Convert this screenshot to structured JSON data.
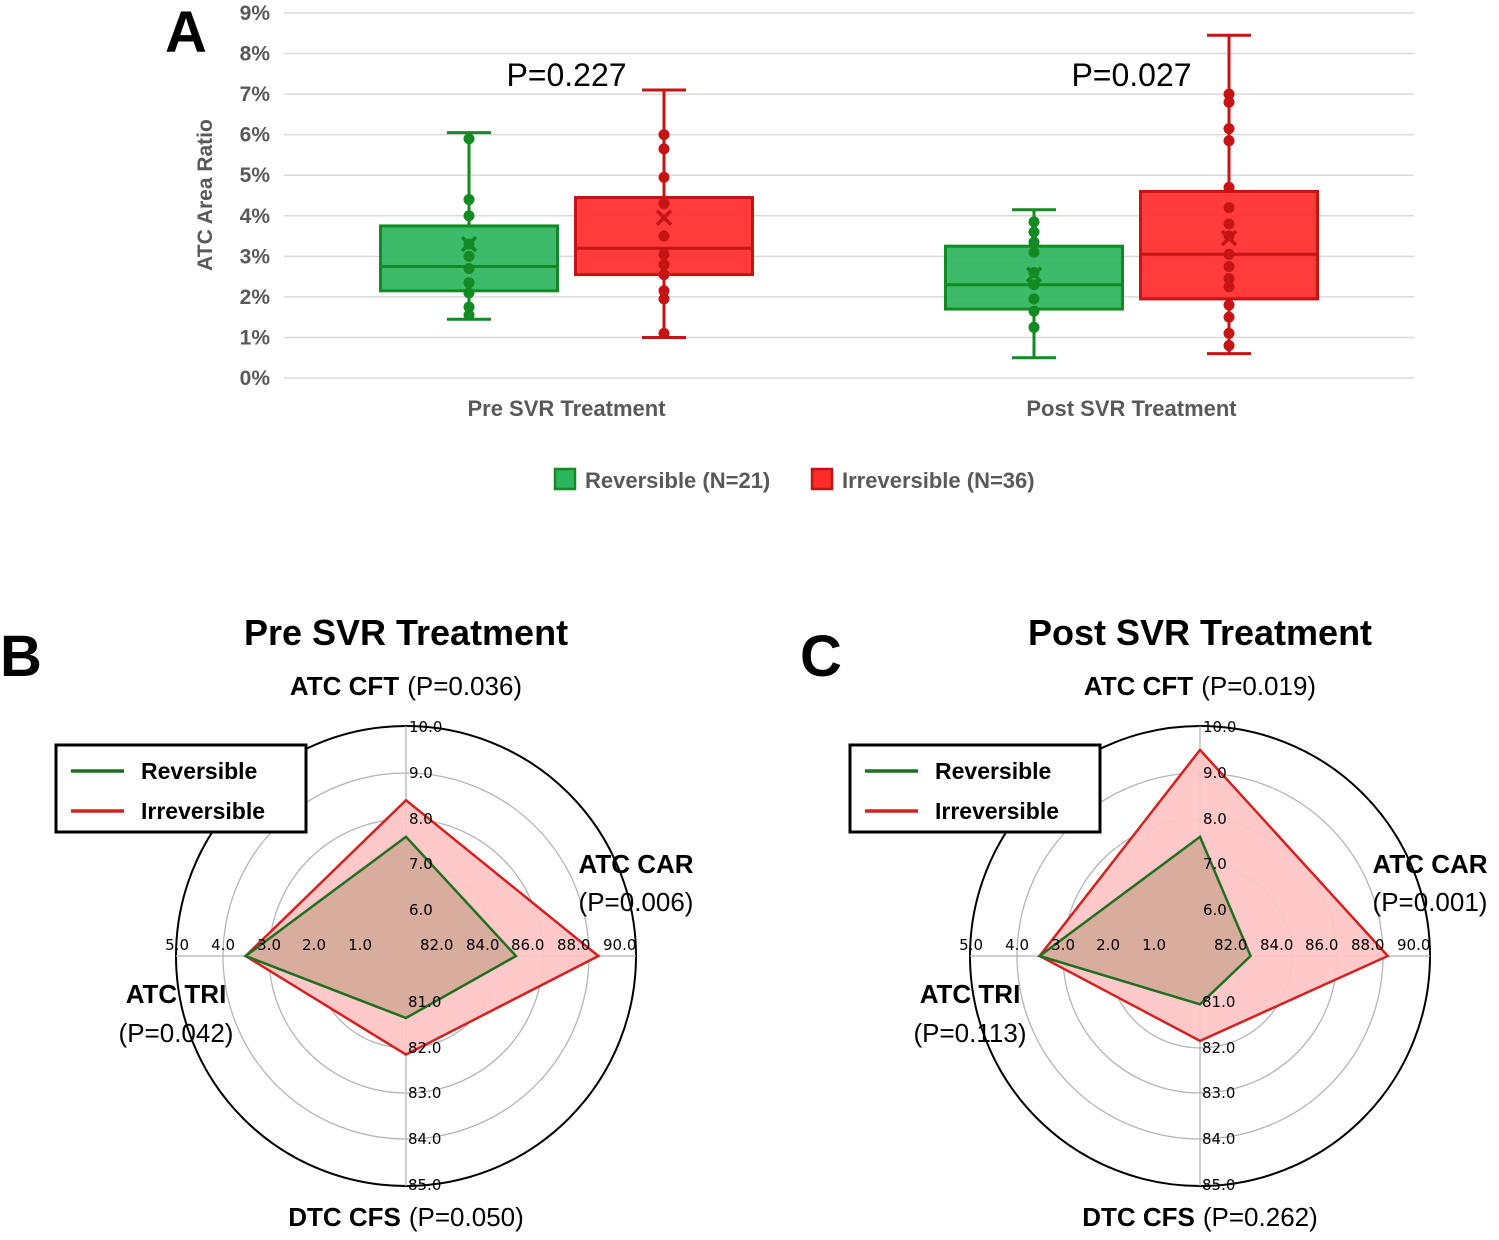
{
  "panel_a": {
    "letter": "A",
    "chart_data": {
      "type": "box",
      "title": "",
      "ylabel": "ATC Area Ratio",
      "xlabel": "",
      "ylim": [
        0,
        9
      ],
      "y_ticks": [
        "0%",
        "1%",
        "2%",
        "3%",
        "4%",
        "5%",
        "6%",
        "7%",
        "8%",
        "9%"
      ],
      "categories": [
        "Pre SVR Treatment",
        "Post SVR Treatment"
      ],
      "p_values": [
        "P=0.227",
        "P=0.027"
      ],
      "series": [
        {
          "name": "Reversible (N=21)",
          "fill": "#2db55d",
          "stroke": "#138a22",
          "boxes": [
            {
              "min": 1.45,
              "q1": 2.15,
              "median": 2.75,
              "q3": 3.75,
              "max": 6.05,
              "mean": 3.3,
              "points": [
                1.55,
                1.75,
                2.1,
                2.35,
                2.7,
                3.0,
                3.3,
                4.0,
                4.4,
                5.9
              ]
            },
            {
              "min": 0.5,
              "q1": 1.7,
              "median": 2.3,
              "q3": 3.25,
              "max": 4.15,
              "mean": 2.55,
              "points": [
                1.25,
                1.65,
                1.95,
                2.3,
                2.6,
                3.1,
                3.35,
                3.6,
                3.85
              ]
            }
          ]
        },
        {
          "name": "Irreversible (N=36)",
          "fill": "#ff2a2a",
          "stroke": "#c41414",
          "boxes": [
            {
              "min": 1.0,
              "q1": 2.55,
              "median": 3.2,
              "q3": 4.45,
              "max": 7.1,
              "mean": 3.95,
              "points": [
                1.1,
                1.95,
                2.15,
                2.55,
                2.8,
                3.05,
                3.5,
                4.3,
                4.95,
                5.65,
                6.0
              ]
            },
            {
              "min": 0.6,
              "q1": 1.95,
              "median": 3.05,
              "q3": 4.6,
              "max": 8.45,
              "mean": 3.45,
              "points": [
                0.8,
                1.1,
                1.5,
                1.8,
                2.25,
                2.45,
                2.75,
                3.05,
                3.5,
                3.8,
                4.2,
                4.7,
                5.85,
                6.15,
                6.8,
                7.0
              ]
            }
          ]
        }
      ]
    }
  },
  "panel_b": {
    "letter": "B",
    "chart_data": {
      "type": "radar",
      "title": "Pre SVR Treatment",
      "axes": [
        {
          "name": "ATC CFT",
          "p": "(P=0.036)",
          "ticks": [
            "6.0",
            "7.0",
            "8.0",
            "9.0",
            "10.0"
          ],
          "reversible": 7.6,
          "irreversible": 8.4
        },
        {
          "name": "ATC CAR",
          "p": "(P=0.006)",
          "ticks": [
            "82.0",
            "84.0",
            "86.0",
            "88.0",
            "90.0"
          ],
          "reversible": 84.8,
          "irreversible": 88.4
        },
        {
          "name": "DTC CFS",
          "p": "(P=0.050)",
          "ticks": [
            "81.0",
            "82.0",
            "83.0",
            "84.0",
            "85.0"
          ],
          "reversible": 81.35,
          "irreversible": 82.15
        },
        {
          "name": "ATC TRI",
          "p": "(P=0.042)",
          "ticks": [
            "1.0",
            "2.0",
            "3.0",
            "4.0",
            "5.0"
          ],
          "reversible": 3.5,
          "irreversible": 3.5
        }
      ],
      "legend": [
        "Reversible",
        "Irreversible"
      ]
    }
  },
  "panel_c": {
    "letter": "C",
    "chart_data": {
      "type": "radar",
      "title": "Post SVR Treatment",
      "axes": [
        {
          "name": "ATC CFT",
          "p": "(P=0.019)",
          "ticks": [
            "6.0",
            "7.0",
            "8.0",
            "9.0",
            "10.0"
          ],
          "reversible": 7.6,
          "irreversible": 9.5
        },
        {
          "name": "ATC CAR",
          "p": "(P=0.001)",
          "ticks": [
            "82.0",
            "84.0",
            "86.0",
            "88.0",
            "90.0"
          ],
          "reversible": 82.2,
          "irreversible": 88.2
        },
        {
          "name": "DTC CFS",
          "p": "(P=0.262)",
          "ticks": [
            "81.0",
            "82.0",
            "83.0",
            "84.0",
            "85.0"
          ],
          "reversible": 81.05,
          "irreversible": 81.85
        },
        {
          "name": "ATC TRI",
          "p": "(P=0.113)",
          "ticks": [
            "1.0",
            "2.0",
            "3.0",
            "4.0",
            "5.0"
          ],
          "reversible": 3.5,
          "irreversible": 3.5
        }
      ],
      "legend": [
        "Reversible",
        "Irreversible"
      ]
    }
  },
  "colors": {
    "grid": "#d9d9d9",
    "reversible_line": "#1f6f1f",
    "irreversible_line": "#d62020",
    "irreversible_fill": "#ffc6c6",
    "overlap_fill": "#d4aa98"
  }
}
